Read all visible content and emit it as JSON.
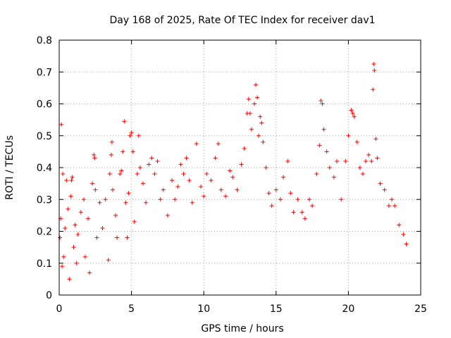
{
  "chart_data": {
    "type": "scatter",
    "title": "Day 168 of 2025, Rate Of TEC Index for receiver dav1",
    "xlabel": "GPS time / hours",
    "ylabel": "ROTI / TECUs",
    "xlim": [
      0,
      25
    ],
    "ylim": [
      0,
      0.8
    ],
    "x_ticks": [
      0,
      5,
      10,
      15,
      20,
      25
    ],
    "y_ticks": [
      0,
      0.1,
      0.2,
      0.3,
      0.4,
      0.5,
      0.6,
      0.7,
      0.8
    ],
    "x_tick_labels": [
      "0",
      "5",
      "10",
      "15",
      "20",
      "25"
    ],
    "y_tick_labels": [
      "0",
      "0.1",
      "0.2",
      "0.3",
      "0.4",
      "0.5",
      "0.6",
      "0.7",
      "0.8"
    ],
    "grid": true,
    "marker": "plus",
    "series": [
      {
        "color": "#ff0000",
        "points": [
          [
            0.05,
            0.18
          ],
          [
            0.1,
            0.24
          ],
          [
            0.15,
            0.535
          ],
          [
            0.2,
            0.09
          ],
          [
            0.25,
            0.38
          ],
          [
            0.3,
            0.12
          ],
          [
            0.4,
            0.21
          ],
          [
            0.5,
            0.36
          ],
          [
            0.6,
            0.27
          ],
          [
            0.7,
            0.05
          ],
          [
            0.8,
            0.31
          ],
          [
            0.85,
            0.36
          ],
          [
            0.9,
            0.37
          ],
          [
            1.0,
            0.15
          ],
          [
            1.1,
            0.22
          ],
          [
            1.2,
            0.1
          ],
          [
            1.3,
            0.19
          ],
          [
            1.5,
            0.26
          ],
          [
            1.7,
            0.3
          ],
          [
            1.8,
            0.12
          ],
          [
            2.0,
            0.24
          ],
          [
            2.1,
            0.07
          ],
          [
            2.3,
            0.35
          ],
          [
            2.4,
            0.44
          ],
          [
            2.45,
            0.43
          ],
          [
            2.5,
            0.33
          ],
          [
            2.6,
            0.18
          ],
          [
            2.8,
            0.29
          ],
          [
            3.0,
            0.21
          ],
          [
            3.2,
            0.3
          ],
          [
            3.4,
            0.11
          ],
          [
            3.5,
            0.38
          ],
          [
            3.6,
            0.44
          ],
          [
            3.65,
            0.48
          ],
          [
            3.7,
            0.33
          ],
          [
            3.9,
            0.25
          ],
          [
            4.0,
            0.18
          ],
          [
            4.2,
            0.38
          ],
          [
            4.3,
            0.39
          ],
          [
            4.4,
            0.45
          ],
          [
            4.5,
            0.545
          ],
          [
            4.6,
            0.29
          ],
          [
            4.7,
            0.18
          ],
          [
            4.8,
            0.32
          ],
          [
            4.9,
            0.5
          ],
          [
            5.0,
            0.51
          ],
          [
            5.1,
            0.45
          ],
          [
            5.2,
            0.23
          ],
          [
            5.4,
            0.38
          ],
          [
            5.5,
            0.5
          ],
          [
            5.6,
            0.4
          ],
          [
            5.8,
            0.35
          ],
          [
            6.0,
            0.29
          ],
          [
            6.2,
            0.41
          ],
          [
            6.4,
            0.43
          ],
          [
            6.6,
            0.38
          ],
          [
            6.8,
            0.42
          ],
          [
            7.0,
            0.3
          ],
          [
            7.2,
            0.33
          ],
          [
            7.5,
            0.25
          ],
          [
            7.8,
            0.36
          ],
          [
            8.0,
            0.3
          ],
          [
            8.2,
            0.34
          ],
          [
            8.4,
            0.41
          ],
          [
            8.6,
            0.38
          ],
          [
            8.8,
            0.43
          ],
          [
            9.0,
            0.36
          ],
          [
            9.2,
            0.29
          ],
          [
            9.5,
            0.475
          ],
          [
            9.8,
            0.34
          ],
          [
            10.0,
            0.31
          ],
          [
            10.2,
            0.38
          ],
          [
            10.5,
            0.36
          ],
          [
            10.8,
            0.43
          ],
          [
            11.0,
            0.475
          ],
          [
            11.2,
            0.33
          ],
          [
            11.5,
            0.31
          ],
          [
            11.8,
            0.39
          ],
          [
            12.0,
            0.37
          ],
          [
            12.3,
            0.33
          ],
          [
            12.6,
            0.41
          ],
          [
            12.8,
            0.46
          ],
          [
            13.0,
            0.57
          ],
          [
            13.1,
            0.615
          ],
          [
            13.2,
            0.57
          ],
          [
            13.3,
            0.52
          ],
          [
            13.5,
            0.6
          ],
          [
            13.6,
            0.66
          ],
          [
            13.7,
            0.62
          ],
          [
            13.8,
            0.5
          ],
          [
            13.9,
            0.56
          ],
          [
            14.0,
            0.54
          ],
          [
            14.1,
            0.48
          ],
          [
            14.3,
            0.4
          ],
          [
            14.5,
            0.32
          ],
          [
            14.7,
            0.28
          ],
          [
            15.0,
            0.33
          ],
          [
            15.3,
            0.3
          ],
          [
            15.5,
            0.37
          ],
          [
            15.8,
            0.42
          ],
          [
            16.0,
            0.32
          ],
          [
            16.2,
            0.26
          ],
          [
            16.5,
            0.3
          ],
          [
            16.8,
            0.26
          ],
          [
            17.0,
            0.24
          ],
          [
            17.3,
            0.3
          ],
          [
            17.5,
            0.28
          ],
          [
            17.8,
            0.38
          ],
          [
            18.0,
            0.47
          ],
          [
            18.1,
            0.61
          ],
          [
            18.2,
            0.6
          ],
          [
            18.3,
            0.52
          ],
          [
            18.5,
            0.45
          ],
          [
            18.7,
            0.4
          ],
          [
            19.0,
            0.37
          ],
          [
            19.2,
            0.42
          ],
          [
            19.5,
            0.3
          ],
          [
            19.8,
            0.42
          ],
          [
            20.0,
            0.5
          ],
          [
            20.2,
            0.58
          ],
          [
            20.3,
            0.57
          ],
          [
            20.4,
            0.56
          ],
          [
            20.6,
            0.48
          ],
          [
            20.8,
            0.4
          ],
          [
            21.0,
            0.38
          ],
          [
            21.2,
            0.42
          ],
          [
            21.4,
            0.44
          ],
          [
            21.6,
            0.42
          ],
          [
            21.7,
            0.645
          ],
          [
            21.75,
            0.725
          ],
          [
            21.8,
            0.705
          ],
          [
            21.9,
            0.49
          ],
          [
            22.0,
            0.43
          ],
          [
            22.2,
            0.35
          ],
          [
            22.5,
            0.33
          ],
          [
            22.8,
            0.28
          ],
          [
            23.0,
            0.3
          ],
          [
            23.2,
            0.28
          ],
          [
            23.5,
            0.22
          ],
          [
            23.8,
            0.19
          ],
          [
            24.0,
            0.16
          ]
        ]
      }
    ]
  }
}
